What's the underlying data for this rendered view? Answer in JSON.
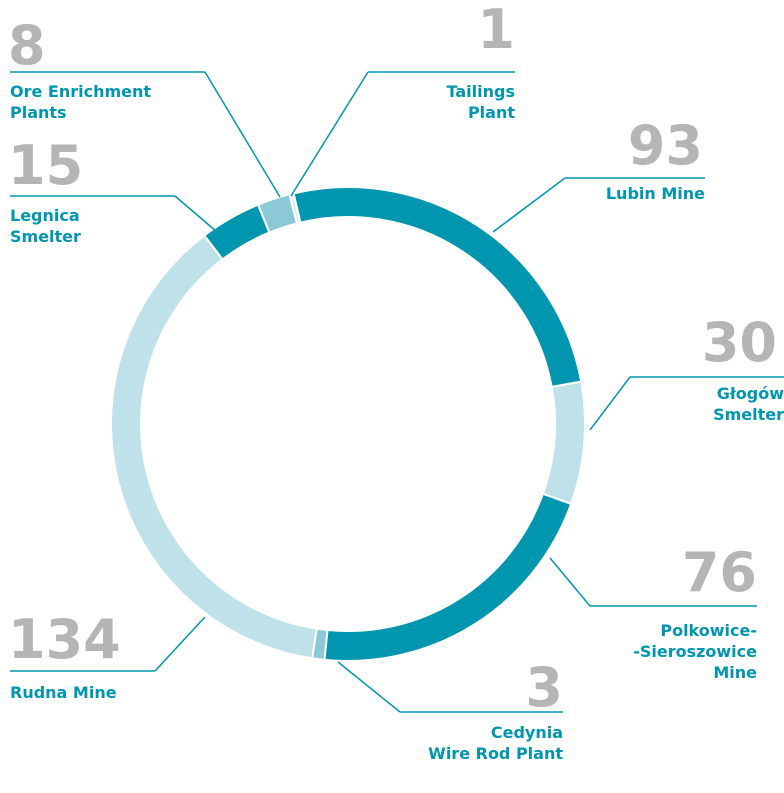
{
  "chart_data": {
    "type": "donut",
    "categories": [
      "Lubin Mine",
      "Głogów\nSmelter",
      "Polkowice-\n-Sieroszowice\nMine",
      "Cedynia\nWire Rod Plant",
      "Rudna Mine",
      "Legnica\nSmelter",
      "Ore Enrichment\nPlants",
      "Tailings\nPlant"
    ],
    "values": [
      93,
      30,
      76,
      3,
      134,
      15,
      8,
      1
    ],
    "colors": [
      "#0096af",
      "#bfe1e9",
      "#0096af",
      "#8cc9d7",
      "#bfe1e9",
      "#0096af",
      "#8cc9d7",
      "#d9eff4"
    ]
  }
}
